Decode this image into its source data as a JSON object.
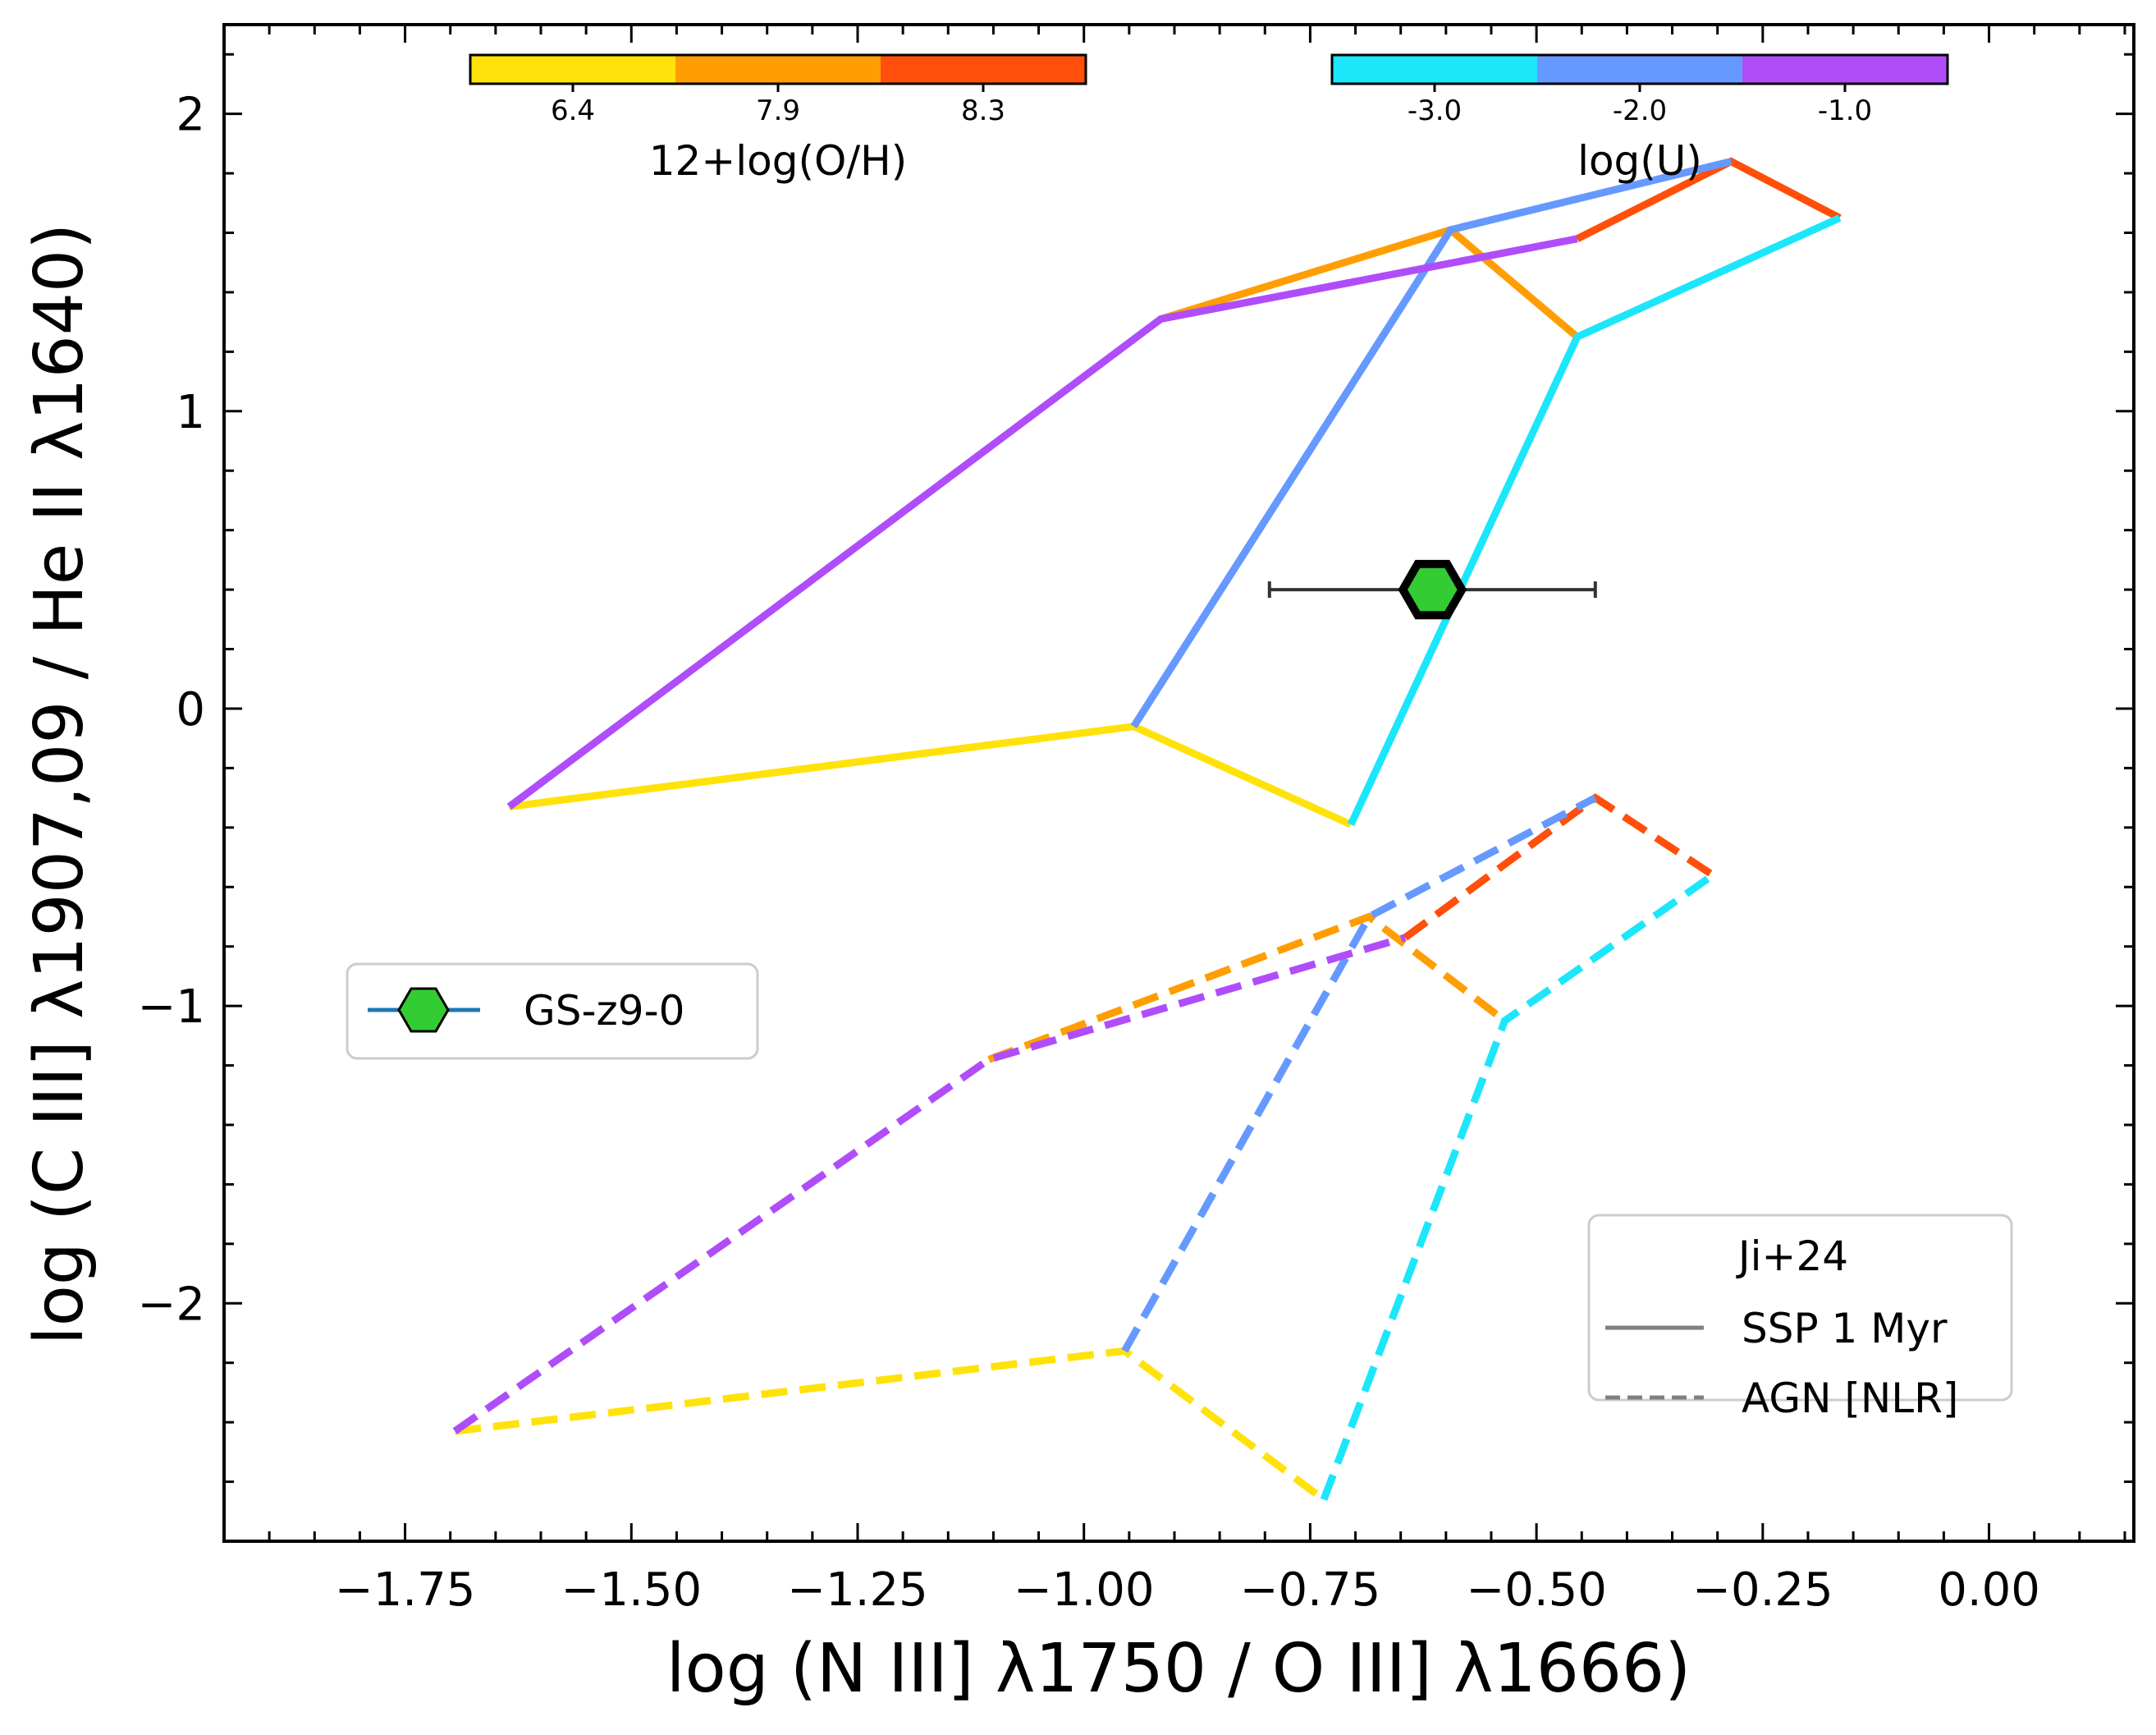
{
  "chart_data": {
    "type": "line",
    "xlabel": "log (N III] λ1750 / O III] λ1666)",
    "ylabel": "log (C III] λ1907,09 / He II λ1640)",
    "xlim": [
      -1.95,
      0.16
    ],
    "ylim": [
      -2.8,
      2.3
    ],
    "xticks": [
      -1.75,
      -1.5,
      -1.25,
      -1.0,
      -0.75,
      -0.5,
      -0.25,
      0.0
    ],
    "xtick_labels": [
      "−1.75",
      "−1.50",
      "−1.25",
      "−1.00",
      "−0.75",
      "−0.50",
      "−0.25",
      "0.00"
    ],
    "yticks": [
      -2,
      -1,
      0,
      1,
      2
    ],
    "ytick_labels": [
      "−2",
      "−1",
      "0",
      "1",
      "2"
    ],
    "colors": {
      "yellow": "#FFE20A",
      "orange": "#FF9E03",
      "red": "#FF4F0A",
      "cyan": "#1CE6FA",
      "blue": "#6699FF",
      "purple": "#B04DFA",
      "point_fill": "#33CC33",
      "errorbar": "#333333",
      "legend_marker_line": "#1f77b4"
    },
    "colorbars": [
      {
        "title": "12+log(O/H)",
        "labels": [
          "6.4",
          "7.9",
          "8.3"
        ],
        "colors": [
          "#FFE20A",
          "#FF9E03",
          "#FF4F0A"
        ]
      },
      {
        "title": "log(U)",
        "labels": [
          "-3.0",
          "-2.0",
          "-1.0"
        ],
        "colors": [
          "#1CE6FA",
          "#6699FF",
          "#B04DFA"
        ]
      }
    ],
    "series": [
      {
        "name": "SSP 1 Myr",
        "style": "solid",
        "segments": [
          {
            "color": "yellow",
            "points": [
              [
                -1.635,
                -0.33
              ],
              [
                -0.945,
                -0.06
              ],
              [
                -0.705,
                -0.39
              ]
            ]
          },
          {
            "color": "orange",
            "points": [
              [
                -0.915,
                1.31
              ],
              [
                -0.595,
                1.61
              ],
              [
                -0.455,
                1.25
              ]
            ]
          },
          {
            "color": "red",
            "points": [
              [
                -0.455,
                1.58
              ],
              [
                -0.285,
                1.84
              ],
              [
                -0.165,
                1.65
              ]
            ]
          },
          {
            "color": "cyan",
            "points": [
              [
                -0.705,
                -0.39
              ],
              [
                -0.455,
                1.25
              ],
              [
                -0.165,
                1.65
              ]
            ]
          },
          {
            "color": "blue",
            "points": [
              [
                -0.945,
                -0.06
              ],
              [
                -0.595,
                1.61
              ],
              [
                -0.285,
                1.84
              ]
            ]
          },
          {
            "color": "purple",
            "points": [
              [
                -1.635,
                -0.33
              ],
              [
                -0.915,
                1.31
              ],
              [
                -0.455,
                1.58
              ]
            ]
          }
        ]
      },
      {
        "name": "AGN [NLR]",
        "style": "dashed",
        "segments": [
          {
            "color": "yellow",
            "points": [
              [
                -1.695,
                -2.43
              ],
              [
                -0.955,
                -2.16
              ],
              [
                -0.735,
                -2.66
              ]
            ]
          },
          {
            "color": "orange",
            "points": [
              [
                -1.105,
                -1.18
              ],
              [
                -0.685,
                -0.7
              ],
              [
                -0.535,
                -1.05
              ]
            ]
          },
          {
            "color": "red",
            "points": [
              [
                -0.645,
                -0.77
              ],
              [
                -0.435,
                -0.3
              ],
              [
                -0.305,
                -0.56
              ]
            ]
          },
          {
            "color": "cyan",
            "points": [
              [
                -0.735,
                -2.66
              ],
              [
                -0.535,
                -1.05
              ],
              [
                -0.305,
                -0.56
              ]
            ]
          },
          {
            "color": "blue",
            "points": [
              [
                -0.955,
                -2.16
              ],
              [
                -0.685,
                -0.7
              ],
              [
                -0.435,
                -0.3
              ]
            ]
          },
          {
            "color": "purple",
            "points": [
              [
                -1.695,
                -2.43
              ],
              [
                -1.105,
                -1.18
              ],
              [
                -0.645,
                -0.77
              ]
            ]
          }
        ]
      }
    ],
    "points": [
      {
        "name": "GS-z9-0",
        "x": -0.615,
        "y": 0.4,
        "xerr_low": -0.795,
        "xerr_high": -0.435
      }
    ],
    "legends": [
      {
        "entries": [
          "GS-z9-0"
        ],
        "location": "center-left"
      },
      {
        "title": "Ji+24",
        "entries": [
          "SSP 1 Myr",
          "AGN [NLR]"
        ],
        "location": "lower-right"
      }
    ]
  }
}
